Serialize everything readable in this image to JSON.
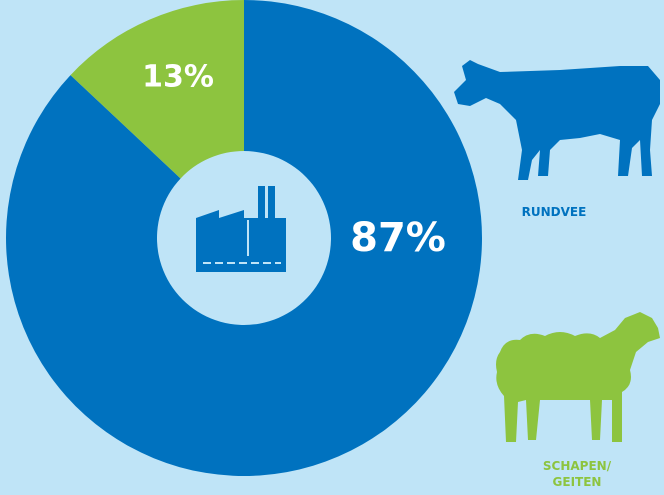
{
  "chart_data": {
    "type": "pie",
    "categories": [
      "RUNDVEE",
      "SCHAPEN/ GEITEN"
    ],
    "values": [
      87,
      13
    ],
    "value_labels": [
      "87%",
      "13%"
    ],
    "colors": [
      "#0072bf",
      "#8dc43f"
    ]
  }
}
